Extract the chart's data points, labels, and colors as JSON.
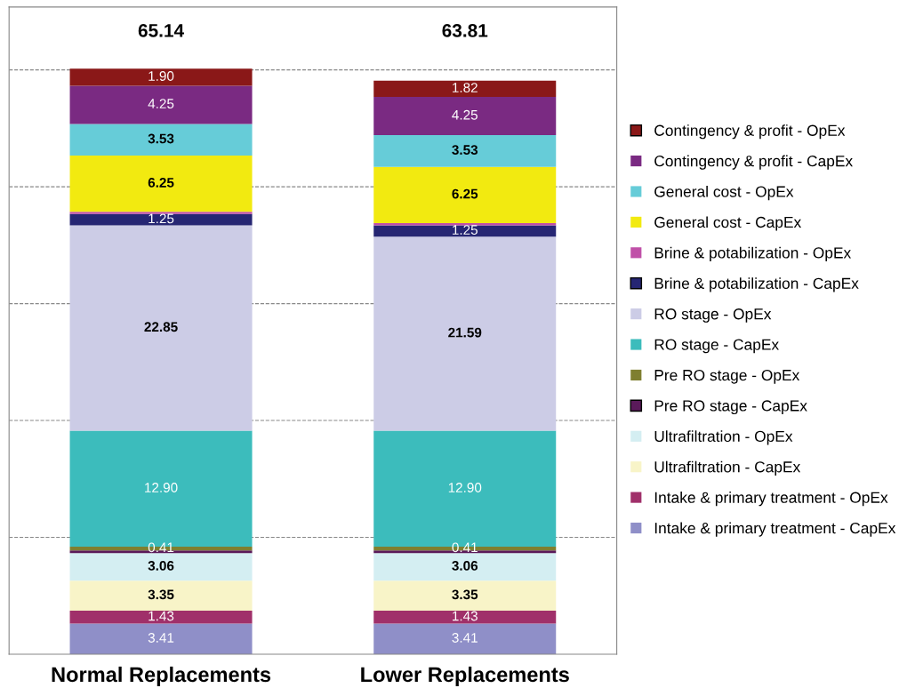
{
  "chart_data": {
    "type": "bar",
    "stacked": true,
    "categories": [
      "Normal Replacements",
      "Lower Replacements"
    ],
    "ylim": [
      0,
      72
    ],
    "yticks": [
      {
        "value": 13,
        "label": null
      },
      {
        "value": 26,
        "label": null
      },
      {
        "value": 39,
        "label": null
      },
      {
        "value": 52,
        "label": null
      },
      {
        "value": 65,
        "label": null
      }
    ],
    "grid": "y",
    "legend": "right",
    "tick_labels": "x",
    "totals": [
      "65.14",
      "63.81"
    ],
    "series": [
      {
        "name": "Intake & primary treatment - CapEx",
        "color": "#8f8fc8",
        "values": [
          3.41,
          3.41
        ],
        "value_labels": [
          "3.41",
          "3.41"
        ]
      },
      {
        "name": "Intake & primary treatment - OpEx",
        "color": "#a0306a",
        "values": [
          1.43,
          1.43
        ],
        "value_labels": [
          "1.43",
          "1.43"
        ]
      },
      {
        "name": "Ultrafiltration - CapEx",
        "color": "#f8f4c8",
        "values": [
          3.35,
          3.35
        ],
        "value_labels": [
          "3.35",
          "3.35"
        ]
      },
      {
        "name": "Ultrafiltration - OpEx",
        "color": "#d4eef2",
        "values": [
          3.06,
          3.06
        ],
        "value_labels": [
          "3.06",
          "3.06"
        ]
      },
      {
        "name": "Pre RO stage - CapEx",
        "color": "#5a1a5a",
        "values": [
          0.3,
          0.3
        ],
        "value_labels": [
          null,
          null
        ]
      },
      {
        "name": "Pre RO stage - OpEx",
        "color": "#7f7f30",
        "values": [
          0.41,
          0.41
        ],
        "value_labels": [
          "0.41",
          "0.41"
        ]
      },
      {
        "name": "RO stage - CapEx",
        "color": "#3cbcbc",
        "values": [
          12.9,
          12.9
        ],
        "value_labels": [
          "12.90",
          "12.90"
        ]
      },
      {
        "name": "RO stage - OpEx",
        "color": "#cccce6",
        "values": [
          22.85,
          21.59
        ],
        "value_labels": [
          "22.85",
          "21.59"
        ]
      },
      {
        "name": "Brine & potabilization - CapEx",
        "color": "#262673",
        "values": [
          1.25,
          1.25
        ],
        "value_labels": [
          "1.25",
          "1.25"
        ]
      },
      {
        "name": "Brine & potabilization - OpEx",
        "color": "#c050a8",
        "values": [
          0.25,
          0.26
        ],
        "value_labels": [
          null,
          null
        ]
      },
      {
        "name": "General cost - CapEx",
        "color": "#f2ea10",
        "values": [
          6.25,
          6.25
        ],
        "value_labels": [
          "6.25",
          "6.25"
        ]
      },
      {
        "name": "General cost - OpEx",
        "color": "#66ccd8",
        "values": [
          3.53,
          3.53
        ],
        "value_labels": [
          "3.53",
          "3.53"
        ]
      },
      {
        "name": "Contingency & profit - CapEx",
        "color": "#7a2a82",
        "values": [
          4.25,
          4.25
        ],
        "value_labels": [
          "4.25",
          "4.25"
        ]
      },
      {
        "name": "Contingency & profit - OpEx",
        "color": "#8a1818",
        "values": [
          1.9,
          1.82
        ],
        "value_labels": [
          "1.90",
          "1.82"
        ]
      }
    ]
  }
}
